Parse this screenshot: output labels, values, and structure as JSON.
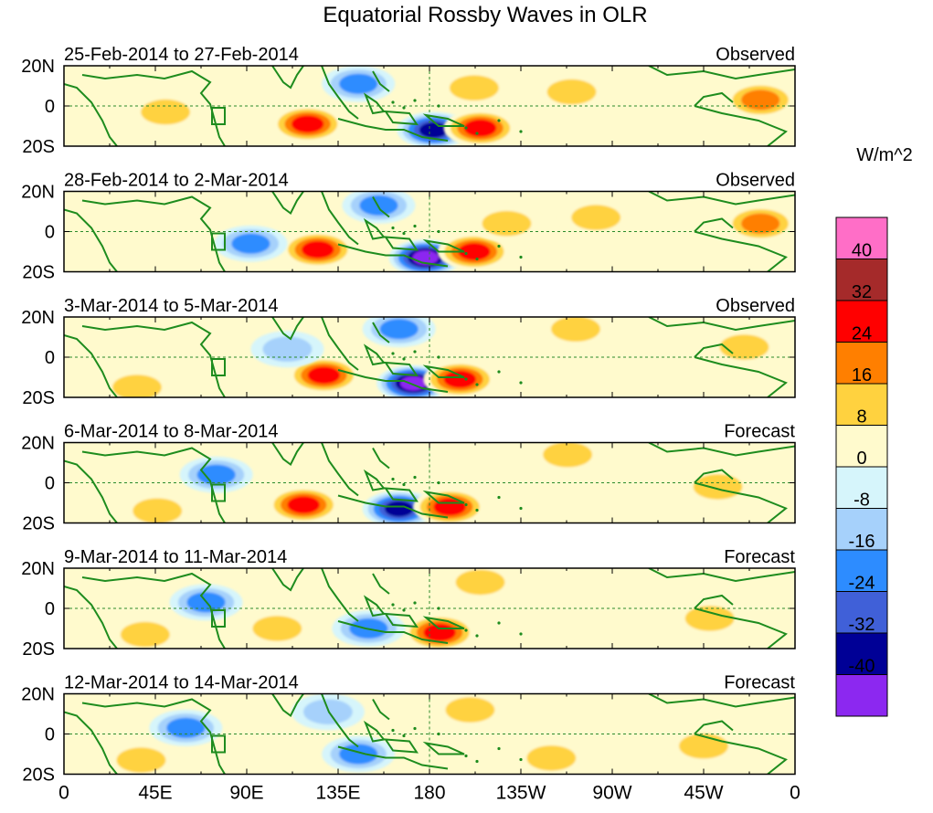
{
  "chart_data": {
    "type": "heatmap",
    "title": "Equatorial Rossby Waves in OLR",
    "units_label": "W/m^2",
    "x_ticks": [
      "0",
      "45E",
      "90E",
      "135E",
      "180",
      "135W",
      "90W",
      "45W",
      "0"
    ],
    "y_ticks": [
      "20N",
      "0",
      "20S"
    ],
    "colorbar": {
      "levels": [
        "40",
        "32",
        "24",
        "16",
        "8",
        "0",
        "-8",
        "-16",
        "-24",
        "-32",
        "-40"
      ],
      "colors": [
        "#ff6ec7",
        "#a52a2a",
        "#ff0000",
        "#ff7f00",
        "#ffd23f",
        "#fffacd",
        "#d6f5fb",
        "#a6d1fb",
        "#2d8cff",
        "#4060d8",
        "#000096",
        "#8c28f0"
      ]
    },
    "panels": [
      {
        "period": "25-Feb-2014 to 27-Feb-2014",
        "status": "Observed",
        "anomalies": [
          {
            "lon": 50,
            "lat": -3,
            "value": 18
          },
          {
            "lon": 120,
            "lat": -9,
            "value": 30
          },
          {
            "lon": 182,
            "lat": -12,
            "value": -42
          },
          {
            "lon": 205,
            "lat": -11,
            "value": 30
          },
          {
            "lon": 145,
            "lat": 11,
            "value": -22
          },
          {
            "lon": 202,
            "lat": 9,
            "value": 12
          },
          {
            "lon": 250,
            "lat": 7,
            "value": 12
          },
          {
            "lon": 343,
            "lat": 3,
            "value": 22
          }
        ]
      },
      {
        "period": "28-Feb-2014 to 2-Mar-2014",
        "status": "Observed",
        "anomalies": [
          {
            "lon": 125,
            "lat": -9,
            "value": 32
          },
          {
            "lon": 178,
            "lat": -13,
            "value": -44
          },
          {
            "lon": 202,
            "lat": -10,
            "value": 33
          },
          {
            "lon": 155,
            "lat": 13,
            "value": -22
          },
          {
            "lon": 92,
            "lat": -6,
            "value": -20
          },
          {
            "lon": 218,
            "lat": 4,
            "value": 14
          },
          {
            "lon": 262,
            "lat": 7,
            "value": 14
          },
          {
            "lon": 343,
            "lat": 4,
            "value": 22
          }
        ]
      },
      {
        "period": "3-Mar-2014 to 5-Mar-2014",
        "status": "Observed",
        "anomalies": [
          {
            "lon": 128,
            "lat": -9,
            "value": 34
          },
          {
            "lon": 172,
            "lat": -13,
            "value": -44
          },
          {
            "lon": 195,
            "lat": -11,
            "value": 34
          },
          {
            "lon": 110,
            "lat": 4,
            "value": -18
          },
          {
            "lon": 165,
            "lat": 14,
            "value": -20
          },
          {
            "lon": 252,
            "lat": 14,
            "value": 18
          },
          {
            "lon": 335,
            "lat": 5,
            "value": 18
          },
          {
            "lon": 36,
            "lat": -15,
            "value": 18
          }
        ]
      },
      {
        "period": "6-Mar-2014 to 8-Mar-2014",
        "status": "Forecast",
        "anomalies": [
          {
            "lon": 118,
            "lat": -11,
            "value": 30
          },
          {
            "lon": 165,
            "lat": -13,
            "value": -40
          },
          {
            "lon": 190,
            "lat": -12,
            "value": 30
          },
          {
            "lon": 75,
            "lat": 4,
            "value": -26
          },
          {
            "lon": 248,
            "lat": 14,
            "value": 18
          },
          {
            "lon": 322,
            "lat": -2,
            "value": 16
          },
          {
            "lon": 46,
            "lat": -14,
            "value": 18
          }
        ]
      },
      {
        "period": "9-Mar-2014 to 11-Mar-2014",
        "status": "Forecast",
        "anomalies": [
          {
            "lon": 185,
            "lat": -12,
            "value": 30
          },
          {
            "lon": 70,
            "lat": 3,
            "value": -26
          },
          {
            "lon": 205,
            "lat": 13,
            "value": 18
          },
          {
            "lon": 318,
            "lat": -5,
            "value": 18
          },
          {
            "lon": 150,
            "lat": -10,
            "value": -20
          },
          {
            "lon": 105,
            "lat": -10,
            "value": 16
          },
          {
            "lon": 40,
            "lat": -13,
            "value": 18
          }
        ]
      },
      {
        "period": "12-Mar-2014 to 14-Mar-2014",
        "status": "Forecast",
        "anomalies": [
          {
            "lon": 200,
            "lat": 12,
            "value": 18
          },
          {
            "lon": 60,
            "lat": 3,
            "value": -24
          },
          {
            "lon": 145,
            "lat": -10,
            "value": -22
          },
          {
            "lon": 315,
            "lat": -6,
            "value": 18
          },
          {
            "lon": 38,
            "lat": -13,
            "value": 18
          },
          {
            "lon": 130,
            "lat": 11,
            "value": -16
          },
          {
            "lon": 240,
            "lat": -12,
            "value": 12
          }
        ]
      }
    ]
  }
}
